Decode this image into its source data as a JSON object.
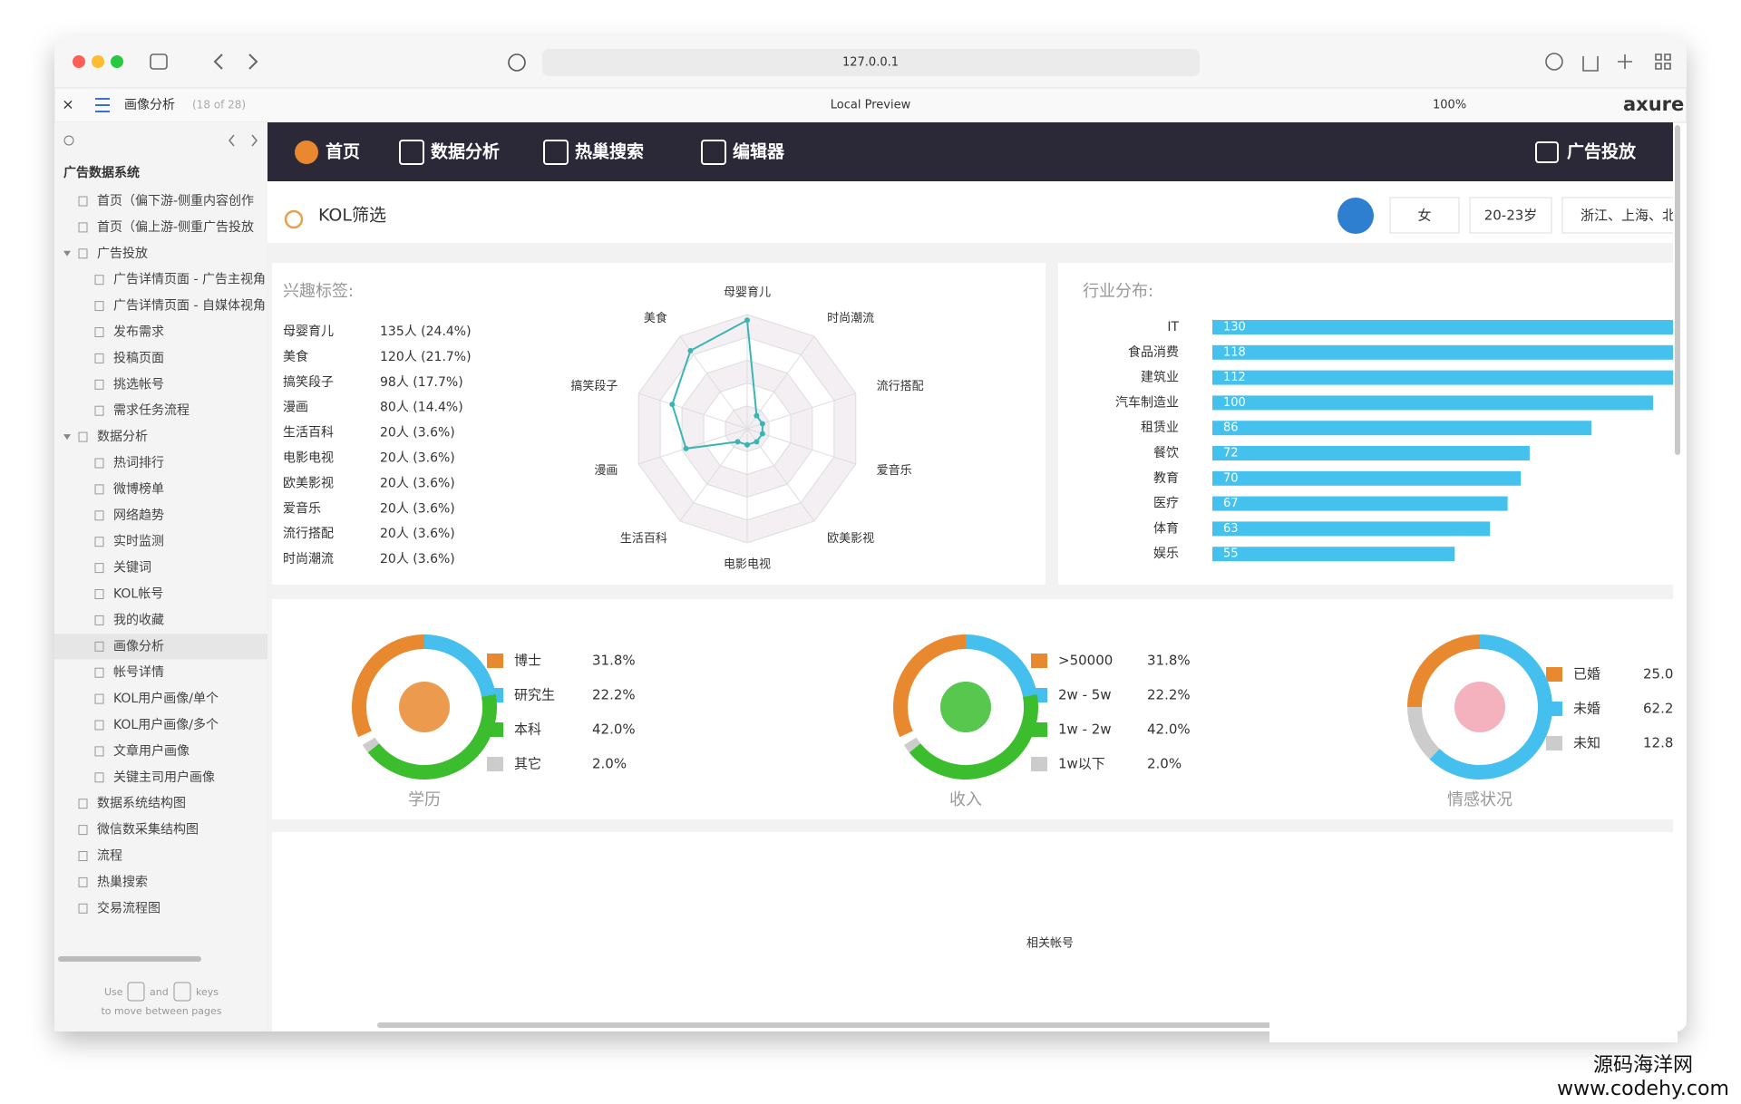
{
  "browser": {
    "url": "127.0.0.1",
    "tab_title": "画像分析",
    "tab_count": "(18 of 28)",
    "preview": "Local Preview",
    "zoom": "100%",
    "brand": "axure"
  },
  "sidebar": {
    "root": "广告数据系统",
    "items": [
      {
        "text": "首页（偏下游-侧重内容创作"
      },
      {
        "text": "首页（偏上游-侧重广告投放"
      },
      {
        "text": "广告投放",
        "children": [
          "广告详情页面 - 广告主视角",
          "广告详情页面 - 自媒体视角",
          "发布需求",
          "投稿页面",
          "挑选帐号",
          "需求任务流程"
        ]
      },
      {
        "text": "数据分析",
        "children": [
          "热词排行",
          "微博榜单",
          "网络趋势",
          "实时监测",
          "关键词",
          "KOL帐号",
          "我的收藏",
          "画像分析",
          "帐号详情",
          "KOL用户画像/单个",
          "KOL用户画像/多个",
          "文章用户画像",
          "关键主司用户画像"
        ]
      },
      {
        "text": "数据系统结构图"
      },
      {
        "text": "微信数采集结构图"
      },
      {
        "text": "流程"
      },
      {
        "text": "热巢搜索"
      },
      {
        "text": "交易流程图"
      }
    ],
    "hint": [
      "Use",
      "and",
      "keys",
      "to move between pages"
    ]
  },
  "nav": {
    "items": [
      "首页",
      "数据分析",
      "热巢搜索",
      "编辑器"
    ],
    "right": "广告投放"
  },
  "filter": {
    "title": "KOL筛选",
    "options": [
      "女",
      "20-23岁",
      "浙江、上海、北"
    ]
  },
  "interests": {
    "title": "兴趣标签:",
    "items": [
      {
        "name": "母婴育儿",
        "label": "135人 (24.4%)"
      },
      {
        "name": "美食",
        "label": "120人 (21.7%)"
      },
      {
        "name": "搞笑段子",
        "label": "98人 (17.7%)"
      },
      {
        "name": "漫画",
        "label": "80人 (14.4%)"
      },
      {
        "name": "生活百科",
        "label": "20人 (3.6%)"
      },
      {
        "name": "电影电视",
        "label": "20人 (3.6%)"
      },
      {
        "name": "欧美影视",
        "label": "20人 (3.6%)"
      },
      {
        "name": "爱音乐",
        "label": "20人 (3.6%)"
      },
      {
        "name": "流行搭配",
        "label": "20人 (3.6%)"
      },
      {
        "name": "时尚潮流",
        "label": "20人 (3.6%)"
      }
    ],
    "radar": {
      "type": "radar",
      "color": "#3cb4b4",
      "axes": [
        {
          "name": "母婴育儿",
          "value": 135
        },
        {
          "name": "时尚潮流",
          "value": 20
        },
        {
          "name": "流行搭配",
          "value": 20
        },
        {
          "name": "爱音乐",
          "value": 20
        },
        {
          "name": "欧美影视",
          "value": 20
        },
        {
          "name": "电影电视",
          "value": 20
        },
        {
          "name": "生活百科",
          "value": 20
        },
        {
          "name": "漫画",
          "value": 80
        },
        {
          "name": "搞笑段子",
          "value": 98
        },
        {
          "name": "美食",
          "value": 120
        }
      ]
    }
  },
  "industry": {
    "type": "bar",
    "title": "行业分布:",
    "color": "#45c1ee",
    "categories": [
      "IT",
      "食品消费",
      "建筑业",
      "汽车制造业",
      "租赁业",
      "餐饮",
      "教育",
      "医疗",
      "体育",
      "娱乐"
    ],
    "values": [
      130,
      118,
      112,
      100,
      86,
      72,
      70,
      67,
      63,
      55
    ]
  },
  "donuts": [
    {
      "type": "donut",
      "title": "学历",
      "items": [
        {
          "name": "博士",
          "value": 31.8,
          "label": "31.8%",
          "color": "#e9892f"
        },
        {
          "name": "研究生",
          "value": 22.2,
          "label": "22.2%",
          "color": "#45bfee"
        },
        {
          "name": "本科",
          "value": 42.0,
          "label": "42.0%",
          "color": "#3bbd2e"
        },
        {
          "name": "其它",
          "value": 2.0,
          "label": "2.0%",
          "color": "#cccccc"
        }
      ]
    },
    {
      "type": "donut",
      "title": "收入",
      "items": [
        {
          "name": ">50000",
          "value": 31.8,
          "label": "31.8%",
          "color": "#e9892f"
        },
        {
          "name": "2w - 5w",
          "value": 22.2,
          "label": "22.2%",
          "color": "#45bfee"
        },
        {
          "name": "1w - 2w",
          "value": 42.0,
          "label": "42.0%",
          "color": "#3bbd2e"
        },
        {
          "name": "1w以下",
          "value": 2.0,
          "label": "2.0%",
          "color": "#cccccc"
        }
      ]
    },
    {
      "type": "donut",
      "title": "情感状况",
      "items": [
        {
          "name": "已婚",
          "value": 25.0,
          "label": "25.0",
          "color": "#e9892f"
        },
        {
          "name": "未婚",
          "value": 62.2,
          "label": "62.2",
          "color": "#45bfee"
        },
        {
          "name": "未知",
          "value": 12.8,
          "label": "12.8",
          "color": "#cccccc"
        }
      ]
    }
  ],
  "related": {
    "title": "相关帐号"
  },
  "watermark": [
    "源码海洋网",
    "www.codehy.com"
  ]
}
